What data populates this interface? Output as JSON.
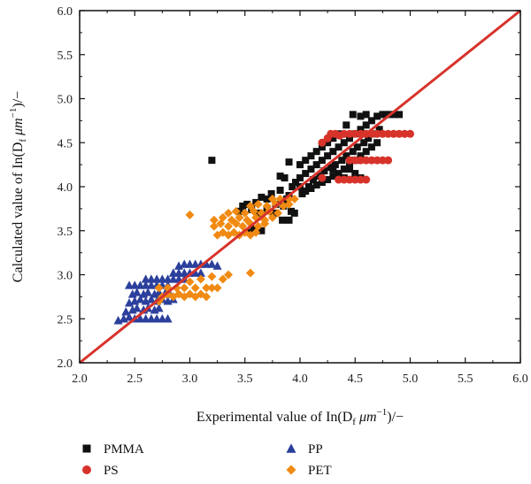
{
  "chart_data": {
    "type": "scatter",
    "xlabel": "Experimental value of In(D",
    "xlabel_sub": "f",
    "xlabel_rest": " μm",
    "xlabel_sup": "−1",
    "xlabel_end": ")/−",
    "ylabel": "Calculated value of In(D",
    "ylabel_sub": "f",
    "ylabel_rest": " μm",
    "ylabel_sup": "−1",
    "ylabel_end": ")/−",
    "xlim": [
      2.0,
      6.0
    ],
    "ylim": [
      2.0,
      6.0
    ],
    "xticks": [
      "2.0",
      "2.5",
      "3.0",
      "3.5",
      "4.0",
      "4.5",
      "5.0",
      "5.5",
      "6.0"
    ],
    "yticks": [
      "2.0",
      "2.5",
      "3.0",
      "3.5",
      "4.0",
      "4.5",
      "5.0",
      "5.5",
      "6.0"
    ],
    "grid": false,
    "legend_position": "bottom",
    "reference_line": {
      "x": [
        2.0,
        6.0
      ],
      "y": [
        2.0,
        6.0
      ],
      "color": "#d7332b"
    },
    "series": [
      {
        "name": "PMMA",
        "marker": "square",
        "color": "#111111",
        "points": [
          [
            3.45,
            3.72
          ],
          [
            3.48,
            3.78
          ],
          [
            3.52,
            3.8
          ],
          [
            3.56,
            3.74
          ],
          [
            3.6,
            3.82
          ],
          [
            3.62,
            3.7
          ],
          [
            3.58,
            3.52
          ],
          [
            3.65,
            3.5
          ],
          [
            3.55,
            3.48
          ],
          [
            3.65,
            3.88
          ],
          [
            3.7,
            3.86
          ],
          [
            3.74,
            3.92
          ],
          [
            3.78,
            3.8
          ],
          [
            3.82,
            3.96
          ],
          [
            3.85,
            3.78
          ],
          [
            3.88,
            3.86
          ],
          [
            3.92,
            3.72
          ],
          [
            3.95,
            3.7
          ],
          [
            3.7,
            3.74
          ],
          [
            3.76,
            3.7
          ],
          [
            3.84,
            3.62
          ],
          [
            3.9,
            3.62
          ],
          [
            3.86,
            4.1
          ],
          [
            3.82,
            4.12
          ],
          [
            3.9,
            3.9
          ],
          [
            3.93,
            4.0
          ],
          [
            3.96,
            4.05
          ],
          [
            4.0,
            4.1
          ],
          [
            4.02,
            3.92
          ],
          [
            4.05,
            4.15
          ],
          [
            4.08,
            4.0
          ],
          [
            4.1,
            4.2
          ],
          [
            4.12,
            4.08
          ],
          [
            4.15,
            4.25
          ],
          [
            4.18,
            4.12
          ],
          [
            4.2,
            4.3
          ],
          [
            4.22,
            4.18
          ],
          [
            4.25,
            4.35
          ],
          [
            4.28,
            4.22
          ],
          [
            4.3,
            4.4
          ],
          [
            4.32,
            4.25
          ],
          [
            4.35,
            4.45
          ],
          [
            4.38,
            4.3
          ],
          [
            4.4,
            4.5
          ],
          [
            4.42,
            4.35
          ],
          [
            4.45,
            4.55
          ],
          [
            4.48,
            4.4
          ],
          [
            4.5,
            4.6
          ],
          [
            4.52,
            4.45
          ],
          [
            4.55,
            4.65
          ],
          [
            4.58,
            4.5
          ],
          [
            4.6,
            4.7
          ],
          [
            4.62,
            4.55
          ],
          [
            4.65,
            4.75
          ],
          [
            4.68,
            4.6
          ],
          [
            4.7,
            4.8
          ],
          [
            4.72,
            4.65
          ],
          [
            4.75,
            4.82
          ],
          [
            4.78,
            4.82
          ],
          [
            4.82,
            4.82
          ],
          [
            4.86,
            4.82
          ],
          [
            4.9,
            4.82
          ],
          [
            4.6,
            4.82
          ],
          [
            4.55,
            4.8
          ],
          [
            4.48,
            4.82
          ],
          [
            4.42,
            4.7
          ],
          [
            4.35,
            4.6
          ],
          [
            4.3,
            4.55
          ],
          [
            4.25,
            4.5
          ],
          [
            4.2,
            4.45
          ],
          [
            4.15,
            4.4
          ],
          [
            4.1,
            4.35
          ],
          [
            4.05,
            4.3
          ],
          [
            4.0,
            4.25
          ],
          [
            4.0,
            4.0
          ],
          [
            4.05,
            3.95
          ],
          [
            4.1,
            3.98
          ],
          [
            4.15,
            4.02
          ],
          [
            4.2,
            4.05
          ],
          [
            4.25,
            4.08
          ],
          [
            4.3,
            4.12
          ],
          [
            4.35,
            4.15
          ],
          [
            4.4,
            4.2
          ],
          [
            4.45,
            4.25
          ],
          [
            4.5,
            4.3
          ],
          [
            4.55,
            4.35
          ],
          [
            4.6,
            4.4
          ],
          [
            4.65,
            4.45
          ],
          [
            4.7,
            4.5
          ],
          [
            4.55,
            4.1
          ],
          [
            4.5,
            4.15
          ],
          [
            4.45,
            4.2
          ],
          [
            4.4,
            4.1
          ],
          [
            4.3,
            4.2
          ],
          [
            3.2,
            4.3
          ],
          [
            3.9,
            4.28
          ]
        ]
      },
      {
        "name": "PS",
        "marker": "circle",
        "color": "#d7332b",
        "points": [
          [
            4.28,
            4.6
          ],
          [
            4.32,
            4.6
          ],
          [
            4.36,
            4.58
          ],
          [
            4.4,
            4.6
          ],
          [
            4.45,
            4.6
          ],
          [
            4.5,
            4.6
          ],
          [
            4.55,
            4.6
          ],
          [
            4.6,
            4.6
          ],
          [
            4.65,
            4.6
          ],
          [
            4.7,
            4.6
          ],
          [
            4.75,
            4.6
          ],
          [
            4.8,
            4.6
          ],
          [
            4.85,
            4.6
          ],
          [
            4.9,
            4.6
          ],
          [
            4.95,
            4.6
          ],
          [
            5.0,
            4.6
          ],
          [
            4.25,
            4.55
          ],
          [
            4.2,
            4.5
          ],
          [
            4.45,
            4.3
          ],
          [
            4.5,
            4.3
          ],
          [
            4.55,
            4.3
          ],
          [
            4.6,
            4.3
          ],
          [
            4.65,
            4.3
          ],
          [
            4.7,
            4.3
          ],
          [
            4.75,
            4.3
          ],
          [
            4.8,
            4.3
          ],
          [
            4.35,
            4.08
          ],
          [
            4.4,
            4.08
          ],
          [
            4.45,
            4.08
          ],
          [
            4.5,
            4.08
          ],
          [
            4.55,
            4.08
          ],
          [
            4.6,
            4.08
          ],
          [
            4.2,
            4.1
          ]
        ]
      },
      {
        "name": "PP",
        "marker": "triangle",
        "color": "#2b3f9c",
        "points": [
          [
            2.35,
            2.48
          ],
          [
            2.4,
            2.5
          ],
          [
            2.45,
            2.52
          ],
          [
            2.5,
            2.5
          ],
          [
            2.55,
            2.5
          ],
          [
            2.6,
            2.5
          ],
          [
            2.65,
            2.5
          ],
          [
            2.7,
            2.5
          ],
          [
            2.75,
            2.5
          ],
          [
            2.8,
            2.5
          ],
          [
            2.42,
            2.58
          ],
          [
            2.48,
            2.6
          ],
          [
            2.52,
            2.62
          ],
          [
            2.58,
            2.6
          ],
          [
            2.62,
            2.62
          ],
          [
            2.68,
            2.6
          ],
          [
            2.72,
            2.62
          ],
          [
            2.45,
            2.68
          ],
          [
            2.5,
            2.7
          ],
          [
            2.55,
            2.72
          ],
          [
            2.6,
            2.7
          ],
          [
            2.65,
            2.72
          ],
          [
            2.7,
            2.7
          ],
          [
            2.75,
            2.72
          ],
          [
            2.8,
            2.7
          ],
          [
            2.85,
            2.72
          ],
          [
            2.48,
            2.78
          ],
          [
            2.52,
            2.8
          ],
          [
            2.58,
            2.78
          ],
          [
            2.62,
            2.8
          ],
          [
            2.68,
            2.78
          ],
          [
            2.72,
            2.8
          ],
          [
            2.78,
            2.8
          ],
          [
            2.82,
            2.78
          ],
          [
            2.45,
            2.88
          ],
          [
            2.5,
            2.88
          ],
          [
            2.55,
            2.88
          ],
          [
            2.6,
            2.88
          ],
          [
            2.65,
            2.88
          ],
          [
            2.7,
            2.88
          ],
          [
            2.75,
            2.88
          ],
          [
            2.8,
            2.88
          ],
          [
            2.6,
            2.95
          ],
          [
            2.65,
            2.95
          ],
          [
            2.7,
            2.95
          ],
          [
            2.75,
            2.95
          ],
          [
            2.8,
            2.95
          ],
          [
            2.85,
            2.95
          ],
          [
            2.9,
            2.95
          ],
          [
            2.95,
            2.95
          ],
          [
            2.85,
            3.02
          ],
          [
            2.9,
            3.02
          ],
          [
            2.95,
            3.02
          ],
          [
            3.0,
            3.02
          ],
          [
            3.05,
            3.02
          ],
          [
            3.1,
            3.02
          ],
          [
            2.9,
            3.1
          ],
          [
            2.95,
            3.12
          ],
          [
            3.0,
            3.12
          ],
          [
            3.05,
            3.12
          ],
          [
            3.1,
            3.12
          ],
          [
            3.15,
            3.12
          ],
          [
            3.2,
            3.12
          ],
          [
            3.25,
            3.1
          ]
        ]
      },
      {
        "name": "PET",
        "marker": "diamond",
        "color": "#f08a12",
        "points": [
          [
            2.75,
            2.75
          ],
          [
            2.8,
            2.78
          ],
          [
            2.85,
            2.75
          ],
          [
            2.9,
            2.78
          ],
          [
            2.95,
            2.75
          ],
          [
            3.0,
            2.78
          ],
          [
            3.05,
            2.75
          ],
          [
            3.1,
            2.78
          ],
          [
            3.15,
            2.75
          ],
          [
            2.72,
            2.85
          ],
          [
            2.8,
            2.85
          ],
          [
            2.88,
            2.85
          ],
          [
            2.95,
            2.85
          ],
          [
            3.05,
            2.85
          ],
          [
            3.15,
            2.85
          ],
          [
            3.2,
            2.85
          ],
          [
            3.25,
            2.85
          ],
          [
            3.0,
            2.92
          ],
          [
            3.1,
            2.95
          ],
          [
            3.2,
            2.98
          ],
          [
            3.3,
            2.95
          ],
          [
            3.35,
            3.0
          ],
          [
            2.72,
            2.7
          ],
          [
            3.0,
            3.68
          ],
          [
            3.55,
            3.02
          ],
          [
            3.25,
            3.45
          ],
          [
            3.3,
            3.48
          ],
          [
            3.35,
            3.45
          ],
          [
            3.4,
            3.48
          ],
          [
            3.45,
            3.45
          ],
          [
            3.5,
            3.48
          ],
          [
            3.55,
            3.45
          ],
          [
            3.6,
            3.48
          ],
          [
            3.22,
            3.55
          ],
          [
            3.28,
            3.58
          ],
          [
            3.35,
            3.55
          ],
          [
            3.42,
            3.58
          ],
          [
            3.48,
            3.55
          ],
          [
            3.55,
            3.58
          ],
          [
            3.62,
            3.55
          ],
          [
            3.68,
            3.58
          ],
          [
            3.22,
            3.62
          ],
          [
            3.3,
            3.65
          ],
          [
            3.38,
            3.62
          ],
          [
            3.45,
            3.65
          ],
          [
            3.52,
            3.62
          ],
          [
            3.6,
            3.65
          ],
          [
            3.68,
            3.62
          ],
          [
            3.75,
            3.65
          ],
          [
            3.35,
            3.7
          ],
          [
            3.42,
            3.72
          ],
          [
            3.5,
            3.7
          ],
          [
            3.58,
            3.72
          ],
          [
            3.65,
            3.7
          ],
          [
            3.72,
            3.72
          ],
          [
            3.8,
            3.7
          ],
          [
            3.55,
            3.78
          ],
          [
            3.62,
            3.8
          ],
          [
            3.7,
            3.78
          ],
          [
            3.78,
            3.8
          ],
          [
            3.85,
            3.78
          ],
          [
            3.9,
            3.8
          ],
          [
            3.75,
            3.86
          ],
          [
            3.82,
            3.86
          ],
          [
            3.9,
            3.86
          ],
          [
            3.95,
            3.86
          ]
        ]
      }
    ]
  }
}
